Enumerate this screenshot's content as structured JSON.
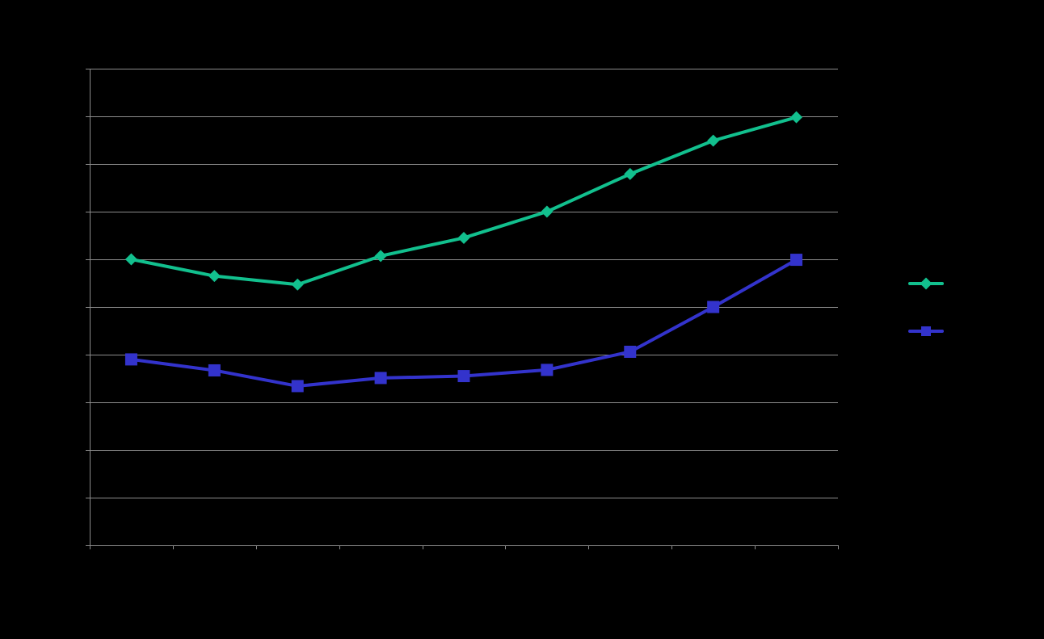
{
  "chart_data": {
    "type": "line",
    "title": "",
    "xlabel": "",
    "ylabel": "",
    "categories": [
      "",
      "",
      "",
      "",
      "",
      "",
      "",
      "",
      ""
    ],
    "ylim": [
      0,
      10
    ],
    "y_tick_step": 1,
    "grid": true,
    "legend_position": "right",
    "background_color": "#000000",
    "axis_color": "#8c8c8c",
    "grid_color": "#8c8c8c",
    "series": [
      {
        "values": [
          6.0,
          5.65,
          5.47,
          6.07,
          6.45,
          7.0,
          7.79,
          8.49,
          8.98
        ],
        "color": "#12c08e",
        "marker": "diamond"
      },
      {
        "values": [
          3.9,
          3.67,
          3.34,
          3.51,
          3.55,
          3.68,
          4.06,
          5.0,
          5.99
        ],
        "color": "#3333cc",
        "marker": "square"
      }
    ]
  }
}
